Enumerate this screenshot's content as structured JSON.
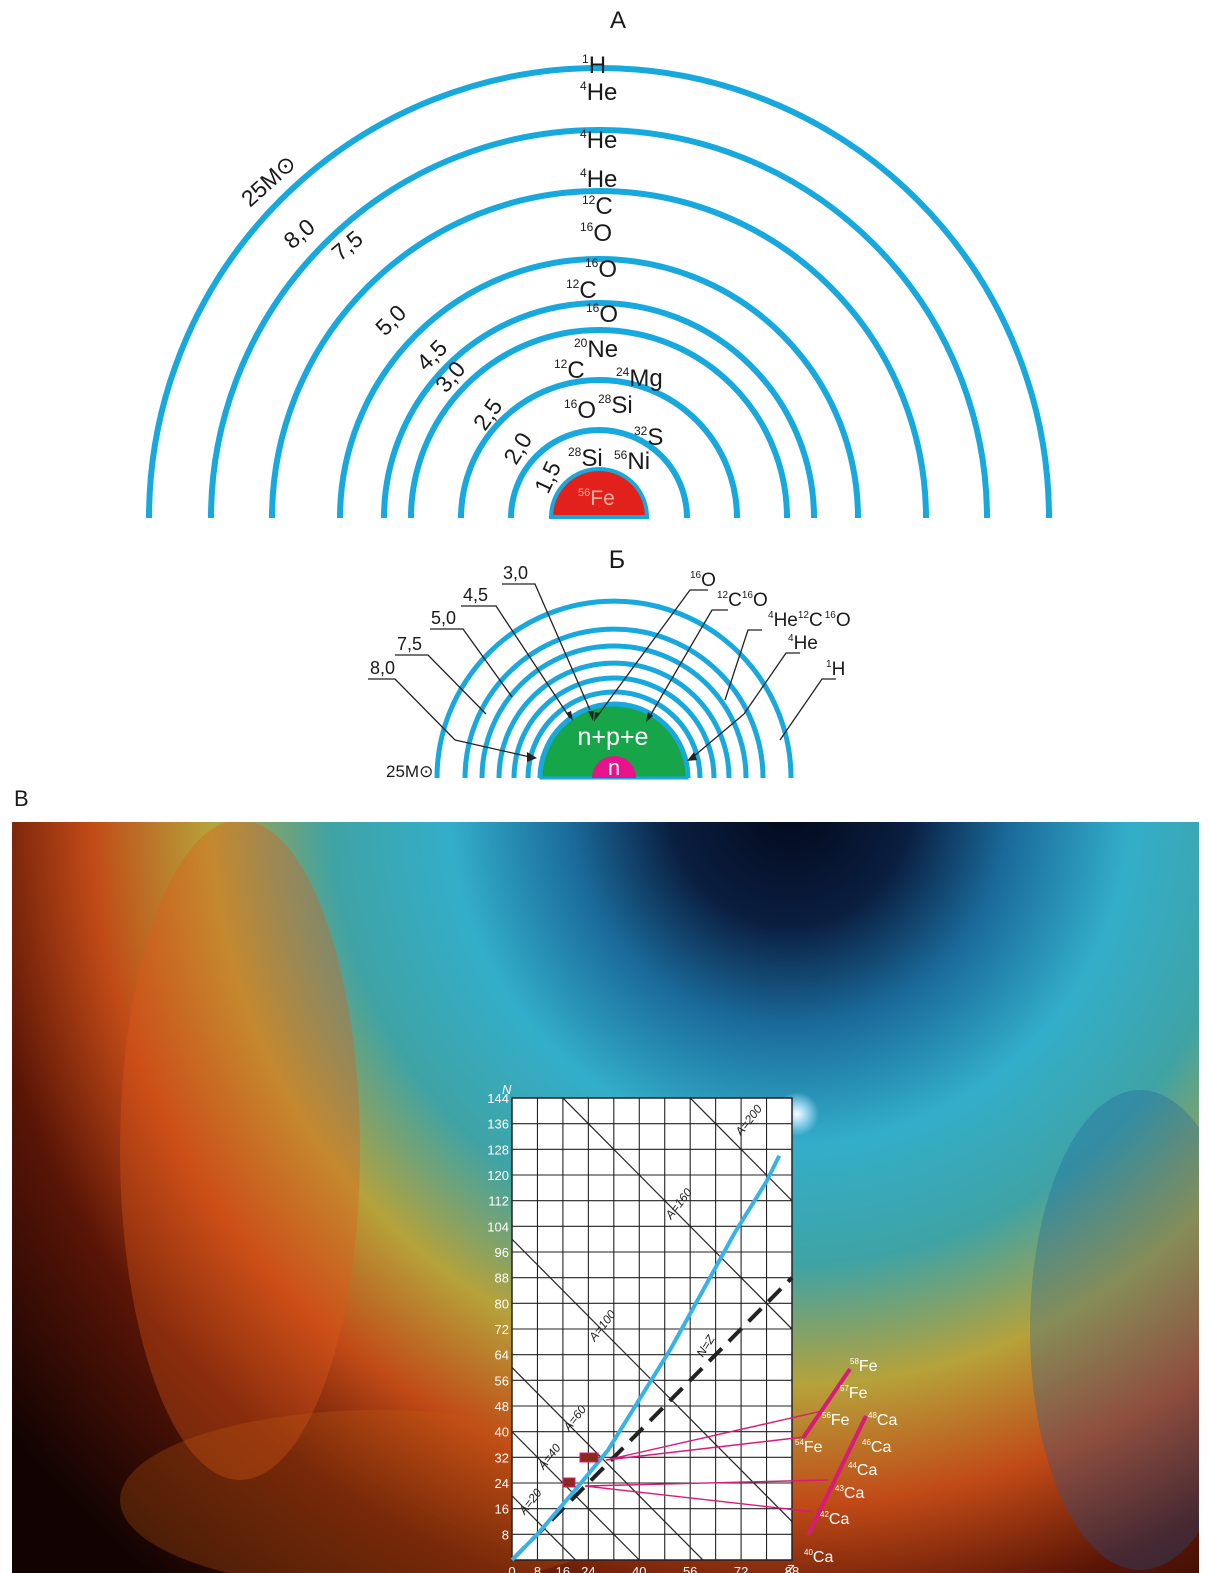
{
  "colors": {
    "shell": "#17a8de",
    "core_fe": "#e3211c",
    "remnant": "#16a548",
    "neutron_core": "#e8138c",
    "leader": "#222222",
    "beta_line": "#35b3e8",
    "isotope_bar": "#d81b7a",
    "grid": "#222222"
  },
  "panel_a": {
    "label": "А",
    "masses": [
      "25M⊙",
      "8,0",
      "7,5",
      "5,0",
      "4,5",
      "3,0",
      "2,5",
      "2,0",
      "1,5"
    ],
    "layers": [
      {
        "mass": "25M⊙",
        "text": [
          "1H",
          "4He"
        ]
      },
      {
        "mass": "8,0",
        "text": [
          "4He"
        ]
      },
      {
        "mass": "7,5",
        "text": [
          "4He",
          "12C",
          "16O"
        ]
      },
      {
        "mass": "5,0",
        "text": [
          "16O",
          "12C"
        ]
      },
      {
        "mass": "4,5",
        "text": [
          "16O"
        ]
      },
      {
        "mass": "3,0",
        "text": [
          "20Ne",
          "12C",
          "24Mg"
        ]
      },
      {
        "mass": "2,5",
        "text": [
          "16O",
          "28Si",
          "32S"
        ]
      },
      {
        "mass": "2,0",
        "text": [
          "28Si",
          "56Ni"
        ]
      },
      {
        "mass": "1,5",
        "text": [
          "56Fe"
        ]
      }
    ]
  },
  "panel_b": {
    "label": "Б",
    "left_labels": [
      "8,0",
      "7,5",
      "5,0",
      "4,5",
      "3,0"
    ],
    "right_labels": [
      "16O",
      "12C 16O",
      "4He 12C 16O",
      "4He",
      "1H"
    ],
    "mass_label": "25M⊙",
    "remnant_text": "n+p+e",
    "core_text": "n"
  },
  "panel_v": {
    "label": "В",
    "background": "Helix Nebula",
    "chart_data": {
      "type": "line",
      "xlabel": "Z",
      "ylabel": "N",
      "xlim": [
        0,
        88
      ],
      "ylim": [
        0,
        144
      ],
      "x_ticks": [
        0,
        8,
        16,
        24,
        40,
        56,
        72,
        88
      ],
      "y_ticks": [
        8,
        16,
        24,
        32,
        40,
        48,
        56,
        64,
        72,
        80,
        88,
        96,
        104,
        112,
        120,
        128,
        136,
        144
      ],
      "isobars": [
        {
          "label": "A=20",
          "A": 20
        },
        {
          "label": "A=40",
          "A": 40
        },
        {
          "label": "A=60",
          "A": 60
        },
        {
          "label": "A=100",
          "A": 100
        },
        {
          "label": "A=160",
          "A": 160
        },
        {
          "label": "A=200",
          "A": 200
        }
      ],
      "diagonal_label": "N=Z",
      "stability_line": [
        [
          0,
          0
        ],
        [
          8,
          8
        ],
        [
          20,
          22
        ],
        [
          30,
          34
        ],
        [
          40,
          50
        ],
        [
          50,
          66
        ],
        [
          60,
          84
        ],
        [
          70,
          102
        ],
        [
          80,
          118
        ],
        [
          84,
          126
        ]
      ],
      "fe_isotopes": [
        "58Fe",
        "57Fe",
        "56Fe",
        "54Fe"
      ],
      "ca_isotopes": [
        "48Ca",
        "46Ca",
        "44Ca",
        "43Ca",
        "42Ca",
        "40Ca"
      ]
    }
  }
}
